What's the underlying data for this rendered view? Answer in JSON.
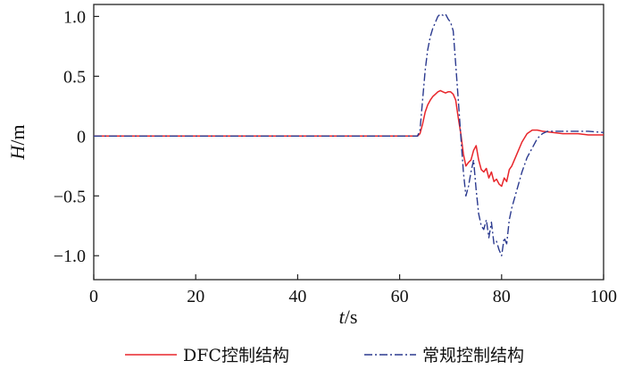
{
  "chart_data": {
    "type": "line",
    "xlabel": {
      "var": "t",
      "unit": "/s"
    },
    "ylabel": {
      "var": "H",
      "unit": "/m"
    },
    "xlim": [
      0,
      100
    ],
    "ylim": [
      -1.2,
      1.1
    ],
    "x_ticks": [
      0,
      20,
      40,
      60,
      80,
      100
    ],
    "x_tick_labels": [
      "0",
      "20",
      "40",
      "60",
      "80",
      "100"
    ],
    "y_ticks": [
      1.0,
      0.5,
      0,
      -0.5,
      -1.0
    ],
    "y_tick_labels": [
      "1.0",
      "0.5",
      "0",
      "−0.5",
      "−1.0"
    ],
    "grid": false,
    "legend_position": "bottom",
    "series": [
      {
        "name": "DFC控制结构",
        "color": "#e8262b",
        "style": "solid",
        "x": [
          0,
          62,
          63.5,
          64,
          64.5,
          65,
          65.5,
          66,
          66.5,
          67,
          67.5,
          68,
          68.5,
          69,
          69.5,
          70,
          70.5,
          71,
          71.5,
          72,
          72.5,
          73,
          73.5,
          74,
          74.5,
          75,
          75.5,
          76,
          76.5,
          77,
          77.5,
          78,
          78.5,
          79,
          79.5,
          80,
          80.5,
          81,
          81.5,
          82,
          83,
          84,
          85,
          86,
          87,
          88,
          90,
          92,
          95,
          97,
          100
        ],
        "y": [
          0,
          0,
          0,
          0.02,
          0.1,
          0.2,
          0.26,
          0.3,
          0.33,
          0.35,
          0.37,
          0.38,
          0.37,
          0.36,
          0.37,
          0.37,
          0.35,
          0.3,
          0.15,
          0.02,
          -0.15,
          -0.25,
          -0.22,
          -0.2,
          -0.12,
          -0.08,
          -0.2,
          -0.28,
          -0.3,
          -0.27,
          -0.35,
          -0.3,
          -0.38,
          -0.36,
          -0.4,
          -0.42,
          -0.35,
          -0.38,
          -0.28,
          -0.25,
          -0.15,
          -0.05,
          0.02,
          0.05,
          0.05,
          0.04,
          0.03,
          0.02,
          0.02,
          0.01,
          0.01
        ]
      },
      {
        "name": "常规控制结构",
        "color": "#2b3a8f",
        "style": "dashdot",
        "x": [
          0,
          62,
          63.5,
          64,
          64.5,
          65,
          65.5,
          66,
          66.5,
          67,
          67.5,
          68,
          68.5,
          69,
          69.5,
          70,
          70.5,
          71,
          71.5,
          72,
          72.5,
          73,
          73.5,
          74,
          74.5,
          75,
          75.5,
          76,
          76.5,
          77,
          77.5,
          78,
          78.5,
          79,
          79.5,
          80,
          80.5,
          81,
          81.5,
          82,
          83,
          84,
          85,
          86,
          87,
          88,
          89,
          90,
          92,
          95,
          97,
          100
        ],
        "y": [
          0,
          0,
          0,
          0.05,
          0.3,
          0.55,
          0.72,
          0.83,
          0.9,
          0.95,
          1.0,
          1.02,
          1.01,
          1.02,
          0.98,
          0.95,
          0.88,
          0.6,
          0.3,
          0.0,
          -0.3,
          -0.5,
          -0.42,
          -0.3,
          -0.2,
          -0.45,
          -0.65,
          -0.75,
          -0.78,
          -0.7,
          -0.85,
          -0.72,
          -0.9,
          -0.88,
          -0.95,
          -1.0,
          -0.85,
          -0.9,
          -0.7,
          -0.6,
          -0.45,
          -0.3,
          -0.18,
          -0.1,
          -0.02,
          0.02,
          0.04,
          0.04,
          0.04,
          0.04,
          0.04,
          0.03
        ]
      }
    ]
  }
}
